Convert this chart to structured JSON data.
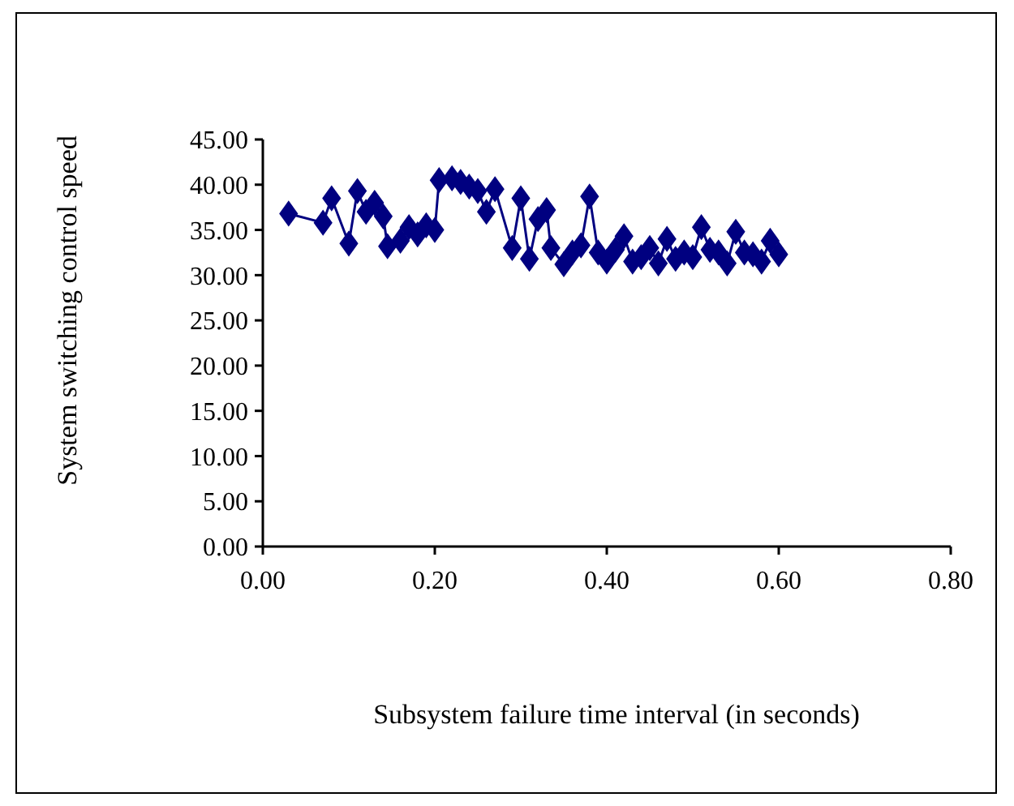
{
  "chart_data": {
    "type": "line",
    "xlabel": "Subsystem failure time interval (in  seconds)",
    "ylabel": "System switching control speed",
    "marker": "diamond",
    "grid": false,
    "xlim": [
      0,
      0.8
    ],
    "xticks": [
      {
        "value": 0,
        "label": "0.00"
      },
      {
        "value": 0.2,
        "label": "0.20"
      },
      {
        "value": 0.4,
        "label": "0.40"
      },
      {
        "value": 0.6,
        "label": "0.60"
      },
      {
        "value": 0.8,
        "label": "0.80"
      }
    ],
    "ylim": [
      0,
      45
    ],
    "yticks": [
      {
        "value": 0,
        "label": "0.00"
      },
      {
        "value": 5,
        "label": "5.00"
      },
      {
        "value": 10,
        "label": "10.00"
      },
      {
        "value": 15,
        "label": "15.00"
      },
      {
        "value": 20,
        "label": "20.00"
      },
      {
        "value": 25,
        "label": "25.00"
      },
      {
        "value": 30,
        "label": "30.00"
      },
      {
        "value": 35,
        "label": "35.00"
      },
      {
        "value": 40,
        "label": "40.00"
      },
      {
        "value": 45,
        "label": "45.00"
      }
    ],
    "x": [
      0.03,
      0.07,
      0.08,
      0.1,
      0.11,
      0.12,
      0.13,
      0.14,
      0.145,
      0.16,
      0.17,
      0.18,
      0.19,
      0.2,
      0.205,
      0.22,
      0.23,
      0.24,
      0.25,
      0.26,
      0.27,
      0.29,
      0.3,
      0.31,
      0.32,
      0.33,
      0.335,
      0.35,
      0.36,
      0.37,
      0.38,
      0.39,
      0.4,
      0.41,
      0.42,
      0.43,
      0.44,
      0.45,
      0.46,
      0.47,
      0.48,
      0.49,
      0.5,
      0.51,
      0.52,
      0.53,
      0.54,
      0.55,
      0.56,
      0.57,
      0.58,
      0.59,
      0.6
    ],
    "series": [
      {
        "color": "#000080",
        "values": [
          36.8,
          35.8,
          38.5,
          33.5,
          39.3,
          37.0,
          38.0,
          36.5,
          33.2,
          33.8,
          35.3,
          34.5,
          35.5,
          35.0,
          40.5,
          40.7,
          40.3,
          39.8,
          39.3,
          37.0,
          39.5,
          33.0,
          38.5,
          31.8,
          36.2,
          37.2,
          33.0,
          31.2,
          32.5,
          33.3,
          38.7,
          32.5,
          31.5,
          32.8,
          34.3,
          31.5,
          32.0,
          33.0,
          31.3,
          34.0,
          31.8,
          32.5,
          32.0,
          35.3,
          32.8,
          32.5,
          31.3,
          34.8,
          32.5,
          32.3,
          31.5,
          33.8,
          32.3
        ]
      }
    ]
  }
}
